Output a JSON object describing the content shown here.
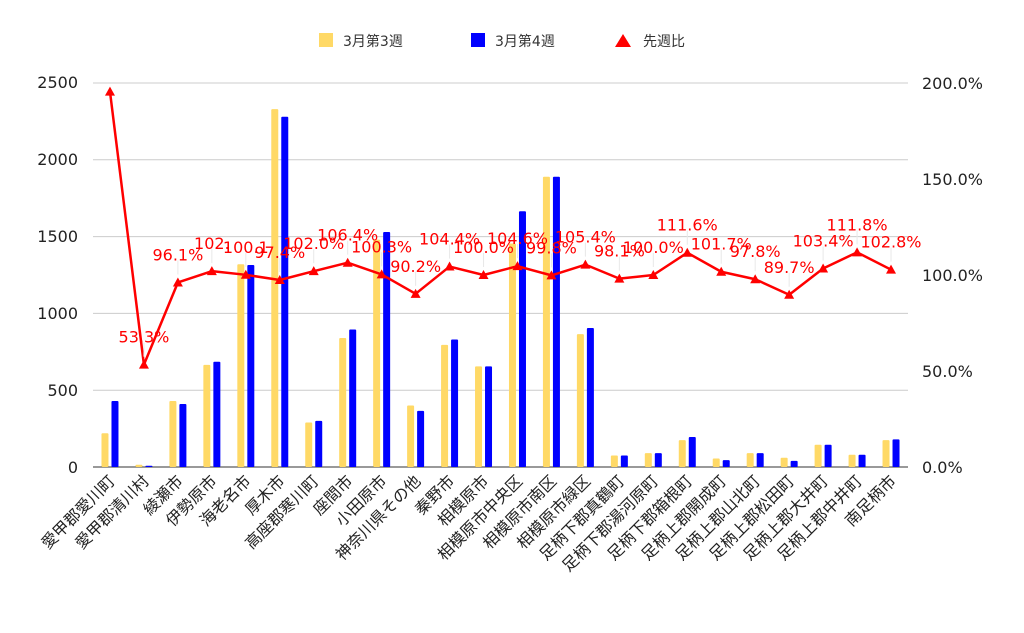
{
  "chart_data": {
    "type": "bar",
    "legend_position": "top",
    "grid": true,
    "categories": [
      "愛甲郡愛川町",
      "愛甲郡清川村",
      "綾瀬市",
      "伊勢原市",
      "海老名市",
      "厚木市",
      "高座郡寒川町",
      "座間市",
      "小田原市",
      "神奈川県その他",
      "秦野市",
      "相模原市",
      "相模原市中央区",
      "相模原市南区",
      "相模原市緑区",
      "足柄下郡真鶴町",
      "足柄下郡湯河原町",
      "足柄下郡箱根町",
      "足柄上郡開成町",
      "足柄上郡山北町",
      "足柄上郡松田町",
      "足柄上郡大井町",
      "足柄上郡中井町",
      "南足柄市"
    ],
    "series": [
      {
        "name": "3月第3週",
        "type": "bar",
        "axis": "left",
        "color": "#ffd966",
        "values": [
          220,
          15,
          430,
          665,
          1320,
          2330,
          290,
          840,
          1480,
          400,
          795,
          655,
          1455,
          1890,
          865,
          75,
          90,
          175,
          55,
          90,
          60,
          145,
          80,
          175
        ]
      },
      {
        "name": "3月第4週",
        "type": "bar",
        "axis": "left",
        "color": "#0000ff",
        "values": [
          430,
          8,
          410,
          685,
          1315,
          2280,
          300,
          895,
          1530,
          365,
          830,
          655,
          1665,
          1890,
          905,
          75,
          90,
          195,
          45,
          90,
          40,
          145,
          80,
          180
        ]
      },
      {
        "name": "先週比",
        "type": "line",
        "axis": "right",
        "color": "#ff0000",
        "values": [
          195.5,
          53.3,
          96.1,
          102.0,
          100.1,
          97.4,
          102.0,
          106.4,
          100.3,
          90.2,
          104.4,
          100.0,
          104.6,
          99.8,
          105.4,
          98.1,
          100.0,
          111.6,
          101.7,
          97.8,
          89.7,
          103.4,
          111.8,
          102.8
        ],
        "data_labels": [
          "",
          "53.3%",
          "96.1%",
          "102.",
          "100.1",
          "97.4%",
          "102.0%",
          "106.4%",
          "100.3%",
          "90.2%",
          "104.4%",
          "100.0%",
          "104.6%",
          "99.8%",
          "105.4%",
          "98.1%",
          "100.0%",
          "111.6%",
          "101.7%",
          "97.8%",
          "89.7%",
          "103.4%",
          "111.8%",
          "102.8%"
        ]
      }
    ],
    "y_left": {
      "min": 0,
      "max": 2500,
      "ticks": [
        "0",
        "500",
        "1000",
        "1500",
        "2000",
        "2500"
      ]
    },
    "y_right": {
      "min": 0,
      "max": 200,
      "ticks": [
        "0.0%",
        "50.0%",
        "100.0%",
        "150.0%",
        "200.0%"
      ]
    }
  }
}
